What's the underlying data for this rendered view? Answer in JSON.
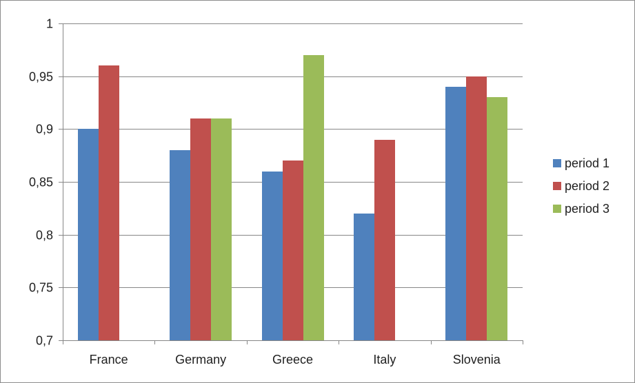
{
  "chart_data": {
    "type": "bar",
    "title": "",
    "xlabel": "",
    "ylabel": "",
    "categories": [
      "France",
      "Germany",
      "Greece",
      "Italy",
      "Slovenia"
    ],
    "series": [
      {
        "name": "period 1",
        "color": "#4f81bd",
        "values": [
          0.9,
          0.88,
          0.86,
          0.82,
          0.94
        ]
      },
      {
        "name": "period 2",
        "color": "#c0504d",
        "values": [
          0.96,
          0.91,
          0.87,
          0.89,
          0.95
        ]
      },
      {
        "name": "period 3",
        "color": "#9bbb59",
        "values": [
          null,
          0.91,
          0.97,
          null,
          0.93
        ]
      }
    ],
    "ylim": [
      0.7,
      1.0
    ],
    "yticks": [
      0.7,
      0.75,
      0.8,
      0.85,
      0.9,
      0.95,
      1.0
    ],
    "ytick_labels": [
      "0,7",
      "0,75",
      "0,8",
      "0,85",
      "0,9",
      "0,95",
      "1"
    ],
    "grid": true,
    "legend_position": "right"
  }
}
